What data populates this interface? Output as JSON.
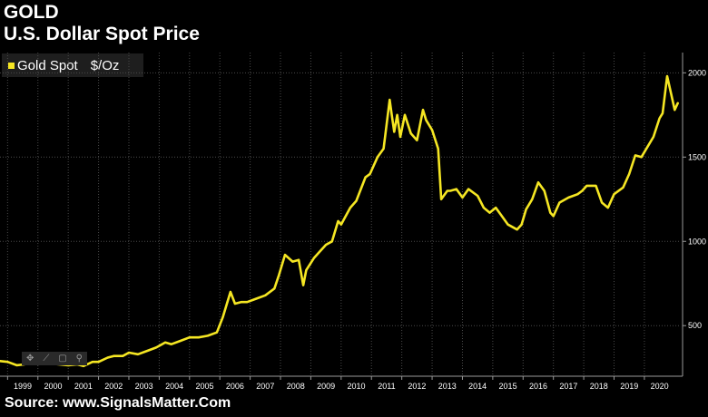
{
  "header": {
    "title": "GOLD",
    "subtitle": "U.S. Dollar Spot Price"
  },
  "legend": {
    "series_name": "Gold Spot",
    "unit": "$/Oz"
  },
  "toolbar": {
    "icons": [
      "move-icon",
      "draw-icon",
      "text-icon",
      "zoom-icon"
    ],
    "glyphs": [
      "✥",
      "⟋",
      "▢",
      "⚲"
    ]
  },
  "footer": {
    "source": "Source: www.SignalsMatter.Com"
  },
  "colors": {
    "background": "#000000",
    "line": "#f5e623",
    "grid": "#4a4a4a",
    "axis_text": "#ffffff"
  },
  "chart_data": {
    "type": "line",
    "title": "GOLD",
    "subtitle": "U.S. Dollar Spot Price",
    "xlabel": "",
    "ylabel": "",
    "x_tick_labels": [
      "1999",
      "2000",
      "2001",
      "2002",
      "2003",
      "2004",
      "2005",
      "2006",
      "2007",
      "2008",
      "2009",
      "2010",
      "2011",
      "2012",
      "2013",
      "2014",
      "2015",
      "2016",
      "2017",
      "2018",
      "2019",
      "2020"
    ],
    "y_ticks": [
      500,
      1000,
      1500,
      2000
    ],
    "xlim": [
      1998.75,
      2021.2
    ],
    "ylim": [
      200,
      2120
    ],
    "grid": true,
    "legend_position": "top-left",
    "series": [
      {
        "name": "Gold Spot",
        "color": "#f5e623",
        "x": [
          1998.75,
          1999.0,
          1999.3,
          1999.55,
          1999.75,
          1999.9,
          2000.1,
          2000.4,
          2000.7,
          2001.0,
          2001.3,
          2001.5,
          2001.8,
          2002.0,
          2002.3,
          2002.5,
          2002.8,
          2003.0,
          2003.3,
          2003.6,
          2003.9,
          2004.2,
          2004.4,
          2004.7,
          2005.0,
          2005.3,
          2005.6,
          2005.9,
          2006.1,
          2006.35,
          2006.5,
          2006.7,
          2006.9,
          2007.2,
          2007.5,
          2007.8,
          2007.95,
          2008.15,
          2008.4,
          2008.6,
          2008.75,
          2008.85,
          2009.1,
          2009.3,
          2009.5,
          2009.7,
          2009.9,
          2010.0,
          2010.3,
          2010.5,
          2010.8,
          2010.95,
          2011.2,
          2011.4,
          2011.6,
          2011.67,
          2011.75,
          2011.85,
          2011.95,
          2012.1,
          2012.3,
          2012.5,
          2012.7,
          2012.8,
          2013.0,
          2013.2,
          2013.3,
          2013.5,
          2013.6,
          2013.8,
          2014.0,
          2014.2,
          2014.5,
          2014.7,
          2014.9,
          2015.1,
          2015.3,
          2015.5,
          2015.8,
          2015.95,
          2016.1,
          2016.3,
          2016.5,
          2016.7,
          2016.9,
          2017.0,
          2017.2,
          2017.5,
          2017.8,
          2017.95,
          2018.1,
          2018.4,
          2018.6,
          2018.8,
          2019.0,
          2019.3,
          2019.5,
          2019.7,
          2019.9,
          2020.1,
          2020.3,
          2020.5,
          2020.6,
          2020.75,
          2020.9,
          2021.0,
          2021.1
        ],
        "values": [
          290,
          285,
          265,
          270,
          300,
          290,
          285,
          275,
          270,
          265,
          270,
          260,
          285,
          285,
          310,
          320,
          320,
          340,
          330,
          350,
          370,
          400,
          390,
          410,
          430,
          430,
          440,
          460,
          550,
          700,
          630,
          640,
          640,
          660,
          680,
          720,
          800,
          920,
          880,
          890,
          740,
          830,
          900,
          940,
          980,
          1000,
          1120,
          1100,
          1200,
          1240,
          1380,
          1400,
          1500,
          1550,
          1840,
          1750,
          1650,
          1750,
          1620,
          1750,
          1640,
          1600,
          1780,
          1720,
          1660,
          1550,
          1250,
          1300,
          1300,
          1310,
          1260,
          1310,
          1270,
          1200,
          1170,
          1200,
          1150,
          1100,
          1070,
          1100,
          1190,
          1250,
          1350,
          1300,
          1170,
          1150,
          1230,
          1260,
          1280,
          1300,
          1330,
          1330,
          1230,
          1200,
          1280,
          1320,
          1400,
          1510,
          1500,
          1560,
          1620,
          1730,
          1760,
          1980,
          1860,
          1780,
          1820
        ]
      }
    ]
  }
}
